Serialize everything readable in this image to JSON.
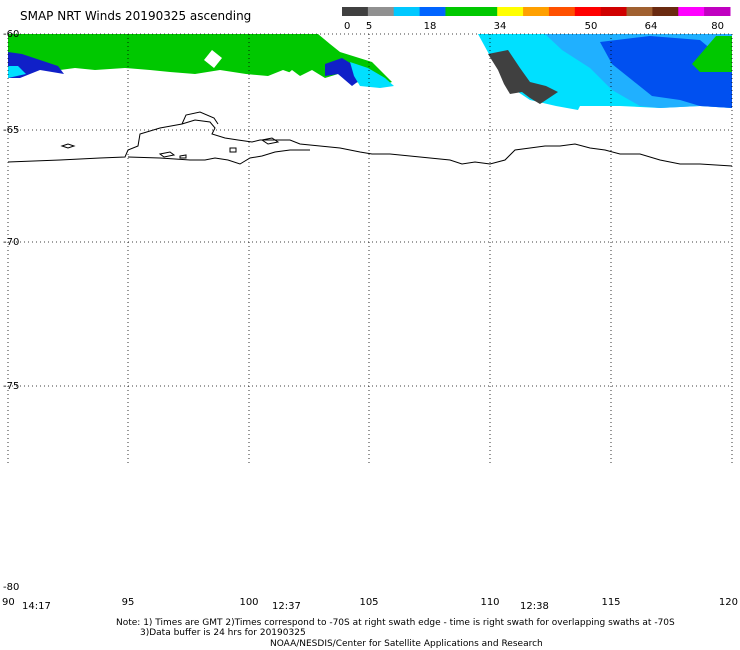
{
  "title": "SMAP NRT Winds 20190325 ascending",
  "colorbar": {
    "tick_labels": [
      "0",
      "5",
      "18",
      "34",
      "50",
      "64",
      "80"
    ],
    "bins": [
      {
        "color": "#404040"
      },
      {
        "color": "#909090"
      },
      {
        "color": "#00c8ff"
      },
      {
        "color": "#0064ff"
      },
      {
        "color": "#00c800"
      },
      {
        "color": "#00c800"
      },
      {
        "color": "#ffff00"
      },
      {
        "color": "#ffa000"
      },
      {
        "color": "#ff5000"
      },
      {
        "color": "#ff0000"
      },
      {
        "color": "#d00000"
      },
      {
        "color": "#a06030"
      },
      {
        "color": "#6a2a10"
      },
      {
        "color": "#ff00ff"
      },
      {
        "color": "#c000c0"
      }
    ]
  },
  "map": {
    "lat_labels": [
      "-60",
      "-65",
      "-70",
      "-75",
      "-80"
    ],
    "lon_labels": [
      "90",
      "95",
      "100",
      "105",
      "110",
      "115",
      "120"
    ],
    "time_labels": [
      "14:17",
      "12:37",
      "12:38"
    ]
  },
  "colors": {
    "wind_green": "#00c800",
    "wind_cyan": "#00e0ff",
    "wind_light_blue": "#20b0ff",
    "wind_blue": "#0050f0",
    "wind_dark_blue": "#1020c8",
    "wind_calm": "#404040",
    "coastline": "#000000"
  },
  "notes": {
    "line1": "Note: 1) Times are GMT 2)Times correspond to -70S at right swath edge - time is right swath for overlapping swaths at -70S",
    "line2": "3)Data buffer is 24 hrs for 20190325",
    "line3": "NOAA/NESDIS/Center for Satellite Applications and Research"
  }
}
